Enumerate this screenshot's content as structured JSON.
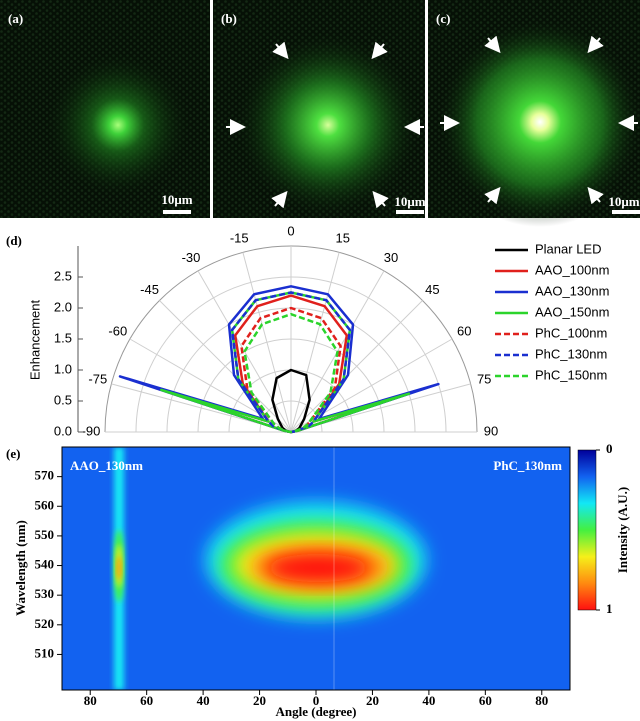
{
  "images": [
    {
      "label": "(a)",
      "scale_bar": "10μm"
    },
    {
      "label": "(b)",
      "scale_bar": "10μm"
    },
    {
      "label": "(c)",
      "scale_bar": "10μm"
    }
  ],
  "chart_data": [
    {
      "type": "polar",
      "panel": "(d)",
      "ylabel": "Enhancement",
      "x": [
        -90,
        -80,
        -72,
        -65,
        -45,
        -30,
        -15,
        0,
        15,
        30,
        45,
        65,
        72,
        80,
        90
      ],
      "rlim": [
        0,
        3
      ],
      "rticks": [
        {
          "value": 0,
          "label": "0.0"
        },
        0.5,
        {
          "value": 1,
          "label": "1.0"
        },
        1.5,
        {
          "value": 2,
          "label": "2.0"
        },
        2.5
      ],
      "xticks": [
        -90,
        -75,
        -60,
        -45,
        -30,
        -15,
        0,
        15,
        30,
        45,
        60,
        75,
        90
      ],
      "grid": true,
      "legend": "right",
      "series": [
        {
          "name": "Planar LED",
          "color": "#000000",
          "line_style": "solid",
          "values": [
            0,
            0.05,
            0.1,
            0.15,
            0.3,
            0.6,
            0.9,
            1.0,
            0.95,
            0.6,
            0.3,
            0.15,
            0.1,
            0.05,
            0
          ]
        },
        {
          "name": "AAO_100nm",
          "color": "#e0201c",
          "line_style": "solid",
          "values": [
            0,
            0.1,
            2.3,
            0.4,
            1.1,
            1.8,
            2.1,
            2.2,
            2.1,
            1.8,
            1.1,
            0.4,
            1.9,
            0.1,
            0
          ]
        },
        {
          "name": "AAO_130nm",
          "color": "#1a2fd0",
          "line_style": "solid",
          "values": [
            0,
            0.1,
            2.9,
            0.5,
            1.3,
            2.0,
            2.3,
            2.35,
            2.3,
            2.0,
            1.3,
            0.5,
            2.5,
            0.1,
            0
          ]
        },
        {
          "name": "AAO_150nm",
          "color": "#2bd42b",
          "line_style": "solid",
          "values": [
            0,
            0.1,
            2.2,
            0.4,
            1.2,
            1.9,
            2.2,
            2.25,
            2.2,
            1.9,
            1.2,
            0.4,
            2.0,
            0.1,
            0
          ]
        },
        {
          "name": "PhC_100nm",
          "color": "#e0201c",
          "line_style": "dashed",
          "values": [
            0,
            0.05,
            0.2,
            0.3,
            1.0,
            1.6,
            1.9,
            2.0,
            1.9,
            1.6,
            1.0,
            0.3,
            0.2,
            0.05,
            0
          ]
        },
        {
          "name": "PhC_130nm",
          "color": "#1a2fd0",
          "line_style": "dashed",
          "values": [
            0,
            0.05,
            0.3,
            0.4,
            1.2,
            1.9,
            2.2,
            2.25,
            2.2,
            1.9,
            1.2,
            0.4,
            0.3,
            0.05,
            0
          ]
        },
        {
          "name": "PhC_150nm",
          "color": "#2bd42b",
          "line_style": "dashed",
          "values": [
            0,
            0.05,
            0.2,
            0.3,
            0.9,
            1.5,
            1.8,
            1.9,
            1.8,
            1.5,
            0.9,
            0.3,
            0.2,
            0.05,
            0
          ]
        }
      ]
    },
    {
      "type": "heatmap",
      "panel": "(e)",
      "xlabel": "Angle (degree)",
      "ylabel": "Wavelength (nm)",
      "annotations": [
        "AAO_130nm",
        "PhC_130nm"
      ],
      "xlim": [
        -90,
        90
      ],
      "xticks": [
        {
          "value": -80,
          "label": "80"
        },
        {
          "value": -60,
          "label": "60"
        },
        {
          "value": -40,
          "label": "40"
        },
        {
          "value": -20,
          "label": "20"
        },
        0,
        20,
        40,
        60,
        80
      ],
      "ylim": [
        498,
        580
      ],
      "yticks": [
        510,
        520,
        530,
        540,
        550,
        560,
        570
      ],
      "colorbar_label": "Intensity (A.U.)",
      "clim": [
        0,
        1
      ],
      "colorbar_ticks": [
        0,
        1
      ],
      "colormap": [
        "#00009a",
        "#1262f0",
        "#12e8f5",
        "#44f040",
        "#f5f01a",
        "#ff8a10",
        "#ff1010"
      ]
    }
  ]
}
